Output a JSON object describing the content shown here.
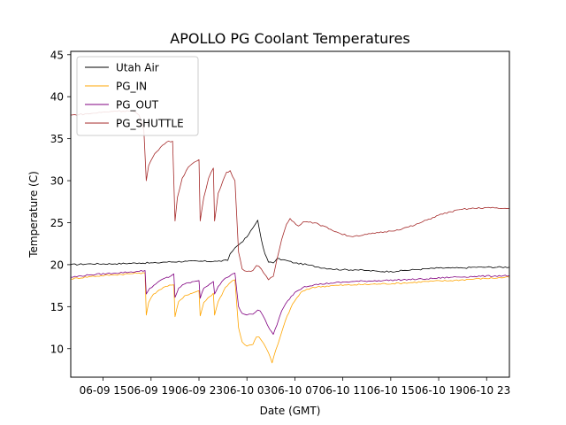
{
  "chart_data": {
    "type": "line",
    "title": "APOLLO PG Coolant Temperatures",
    "xlabel": "Date (GMT)",
    "ylabel": "Temperature (C)",
    "xlim": [
      12.3,
      48.9
    ],
    "ylim": [
      6.6,
      45.4
    ],
    "x_unit": "hours since 06-09 00:00 GMT",
    "x_ticks": [
      {
        "value": 15,
        "label": "06-09 15"
      },
      {
        "value": 19,
        "label": "06-09 19"
      },
      {
        "value": 23,
        "label": "06-09 23"
      },
      {
        "value": 27,
        "label": "06-10 03"
      },
      {
        "value": 31,
        "label": "06-10 07"
      },
      {
        "value": 35,
        "label": "06-10 11"
      },
      {
        "value": 39,
        "label": "06-10 15"
      },
      {
        "value": 43,
        "label": "06-10 19"
      },
      {
        "value": 47,
        "label": "06-10 23"
      }
    ],
    "y_ticks": [
      {
        "value": 10,
        "label": "10"
      },
      {
        "value": 15,
        "label": "15"
      },
      {
        "value": 20,
        "label": "20"
      },
      {
        "value": 25,
        "label": "25"
      },
      {
        "value": 30,
        "label": "30"
      },
      {
        "value": 35,
        "label": "35"
      },
      {
        "value": 40,
        "label": "40"
      },
      {
        "value": 45,
        "label": "45"
      }
    ],
    "legend_position": "top-left",
    "grid": false,
    "series": [
      {
        "name": "Utah Air",
        "color": "#000000",
        "points": [
          [
            12.3,
            20.0
          ],
          [
            14,
            20.1
          ],
          [
            16,
            20.1
          ],
          [
            18,
            20.2
          ],
          [
            19.5,
            20.2
          ],
          [
            20,
            20.3
          ],
          [
            22,
            20.4
          ],
          [
            23,
            20.4
          ],
          [
            24.5,
            20.4
          ],
          [
            25.4,
            20.5
          ],
          [
            25.6,
            21.3
          ],
          [
            26,
            22.0
          ],
          [
            26.5,
            22.6
          ],
          [
            27,
            23.3
          ],
          [
            27.6,
            24.6
          ],
          [
            27.9,
            25.3
          ],
          [
            28,
            24.5
          ],
          [
            28.2,
            23.0
          ],
          [
            28.5,
            21.3
          ],
          [
            28.8,
            20.3
          ],
          [
            29.2,
            20.2
          ],
          [
            29.5,
            20.7
          ],
          [
            30,
            20.6
          ],
          [
            31,
            20.2
          ],
          [
            32,
            20.0
          ],
          [
            33,
            19.7
          ],
          [
            34,
            19.5
          ],
          [
            35,
            19.4
          ],
          [
            36,
            19.4
          ],
          [
            37,
            19.3
          ],
          [
            38,
            19.2
          ],
          [
            39,
            19.2
          ],
          [
            39.5,
            19.2
          ],
          [
            40,
            19.3
          ],
          [
            41,
            19.4
          ],
          [
            42,
            19.5
          ],
          [
            43,
            19.6
          ],
          [
            44,
            19.6
          ],
          [
            45,
            19.6
          ],
          [
            46,
            19.7
          ],
          [
            47,
            19.7
          ],
          [
            48.9,
            19.7
          ]
        ]
      },
      {
        "name": "PG_IN",
        "color": "#ffa500",
        "points": [
          [
            12.3,
            18.3
          ],
          [
            14,
            18.6
          ],
          [
            16,
            18.8
          ],
          [
            18,
            19.0
          ],
          [
            18.5,
            19.0
          ],
          [
            18.6,
            14.0
          ],
          [
            18.8,
            15.5
          ],
          [
            19.2,
            16.5
          ],
          [
            19.7,
            17.0
          ],
          [
            20.2,
            17.4
          ],
          [
            20.9,
            17.6
          ],
          [
            21.0,
            13.8
          ],
          [
            21.3,
            15.6
          ],
          [
            21.8,
            16.3
          ],
          [
            22.6,
            16.7
          ],
          [
            23.0,
            16.9
          ],
          [
            23.1,
            13.9
          ],
          [
            23.4,
            15.5
          ],
          [
            23.9,
            16.2
          ],
          [
            24.2,
            16.6
          ],
          [
            24.3,
            14.0
          ],
          [
            24.6,
            15.6
          ],
          [
            25.2,
            17.3
          ],
          [
            25.8,
            18.1
          ],
          [
            26.0,
            18.2
          ],
          [
            26.3,
            12.5
          ],
          [
            26.6,
            10.8
          ],
          [
            27.0,
            10.3
          ],
          [
            27.5,
            10.5
          ],
          [
            27.8,
            11.4
          ],
          [
            28.0,
            11.4
          ],
          [
            28.4,
            10.6
          ],
          [
            28.8,
            9.5
          ],
          [
            29.1,
            8.3
          ],
          [
            29.4,
            9.8
          ],
          [
            29.8,
            11.5
          ],
          [
            30.2,
            13.3
          ],
          [
            30.8,
            15.3
          ],
          [
            31.5,
            16.7
          ],
          [
            32.5,
            17.3
          ],
          [
            34,
            17.5
          ],
          [
            36,
            17.6
          ],
          [
            38,
            17.7
          ],
          [
            40,
            17.8
          ],
          [
            42,
            18.0
          ],
          [
            44,
            18.1
          ],
          [
            46,
            18.3
          ],
          [
            48.9,
            18.5
          ]
        ]
      },
      {
        "name": "PG_OUT",
        "color": "#800080",
        "points": [
          [
            12.3,
            18.5
          ],
          [
            14,
            18.8
          ],
          [
            16,
            19.0
          ],
          [
            18,
            19.2
          ],
          [
            18.5,
            19.3
          ],
          [
            18.6,
            16.5
          ],
          [
            18.9,
            17.2
          ],
          [
            19.4,
            17.7
          ],
          [
            20,
            18.3
          ],
          [
            20.6,
            18.6
          ],
          [
            20.9,
            18.9
          ],
          [
            21.0,
            16.1
          ],
          [
            21.3,
            17.2
          ],
          [
            21.8,
            17.7
          ],
          [
            22.6,
            18.0
          ],
          [
            23.0,
            18.1
          ],
          [
            23.1,
            16.0
          ],
          [
            23.4,
            17.2
          ],
          [
            23.9,
            17.7
          ],
          [
            24.2,
            18.0
          ],
          [
            24.3,
            16.5
          ],
          [
            24.6,
            17.4
          ],
          [
            25.2,
            18.4
          ],
          [
            25.8,
            18.9
          ],
          [
            26.0,
            19.0
          ],
          [
            26.3,
            15.0
          ],
          [
            26.6,
            14.2
          ],
          [
            27.0,
            14.0
          ],
          [
            27.5,
            14.1
          ],
          [
            27.9,
            14.6
          ],
          [
            28.1,
            14.5
          ],
          [
            28.5,
            13.5
          ],
          [
            28.9,
            12.3
          ],
          [
            29.2,
            11.7
          ],
          [
            29.5,
            12.8
          ],
          [
            29.9,
            14.5
          ],
          [
            30.4,
            15.7
          ],
          [
            31,
            16.7
          ],
          [
            31.8,
            17.4
          ],
          [
            32.6,
            17.6
          ],
          [
            34,
            17.8
          ],
          [
            36,
            18.0
          ],
          [
            38,
            18.1
          ],
          [
            40,
            18.2
          ],
          [
            42,
            18.3
          ],
          [
            44,
            18.5
          ],
          [
            46,
            18.6
          ],
          [
            48.9,
            18.7
          ]
        ]
      },
      {
        "name": "PG_SHUTTLE",
        "color": "#a52a2a",
        "points": [
          [
            12.3,
            37.8
          ],
          [
            14,
            38.0
          ],
          [
            16,
            38.3
          ],
          [
            17.5,
            38.3
          ],
          [
            18.0,
            37.8
          ],
          [
            18.4,
            36.0
          ],
          [
            18.6,
            30.0
          ],
          [
            18.8,
            31.8
          ],
          [
            19.3,
            33.2
          ],
          [
            19.8,
            34.0
          ],
          [
            20.3,
            34.6
          ],
          [
            20.8,
            34.7
          ],
          [
            21.0,
            25.2
          ],
          [
            21.2,
            28.0
          ],
          [
            21.6,
            30.3
          ],
          [
            22.1,
            31.6
          ],
          [
            22.6,
            32.2
          ],
          [
            23.0,
            32.5
          ],
          [
            23.1,
            25.2
          ],
          [
            23.4,
            28.0
          ],
          [
            23.8,
            30.3
          ],
          [
            24.2,
            31.5
          ],
          [
            24.3,
            25.2
          ],
          [
            24.6,
            28.5
          ],
          [
            25.0,
            30.0
          ],
          [
            25.3,
            31.0
          ],
          [
            25.6,
            31.2
          ],
          [
            25.8,
            30.5
          ],
          [
            26.0,
            30.0
          ],
          [
            26.3,
            21.5
          ],
          [
            26.6,
            19.5
          ],
          [
            27.0,
            19.2
          ],
          [
            27.5,
            19.3
          ],
          [
            27.8,
            19.9
          ],
          [
            28.0,
            19.8
          ],
          [
            28.4,
            19.0
          ],
          [
            28.8,
            18.2
          ],
          [
            29.2,
            18.6
          ],
          [
            29.5,
            20.6
          ],
          [
            29.9,
            23.0
          ],
          [
            30.3,
            24.8
          ],
          [
            30.6,
            25.5
          ],
          [
            30.9,
            25.1
          ],
          [
            31.3,
            24.6
          ],
          [
            31.7,
            25.1
          ],
          [
            32.3,
            25.1
          ],
          [
            33,
            24.8
          ],
          [
            34,
            24.2
          ],
          [
            34.8,
            23.7
          ],
          [
            35.5,
            23.4
          ],
          [
            36,
            23.4
          ],
          [
            37,
            23.6
          ],
          [
            38,
            23.8
          ],
          [
            39,
            24.0
          ],
          [
            40,
            24.3
          ],
          [
            41,
            24.7
          ],
          [
            42,
            25.3
          ],
          [
            43,
            25.9
          ],
          [
            44,
            26.3
          ],
          [
            45,
            26.6
          ],
          [
            46,
            26.7
          ],
          [
            47,
            26.8
          ],
          [
            48,
            26.7
          ],
          [
            48.9,
            26.7
          ]
        ]
      }
    ]
  }
}
